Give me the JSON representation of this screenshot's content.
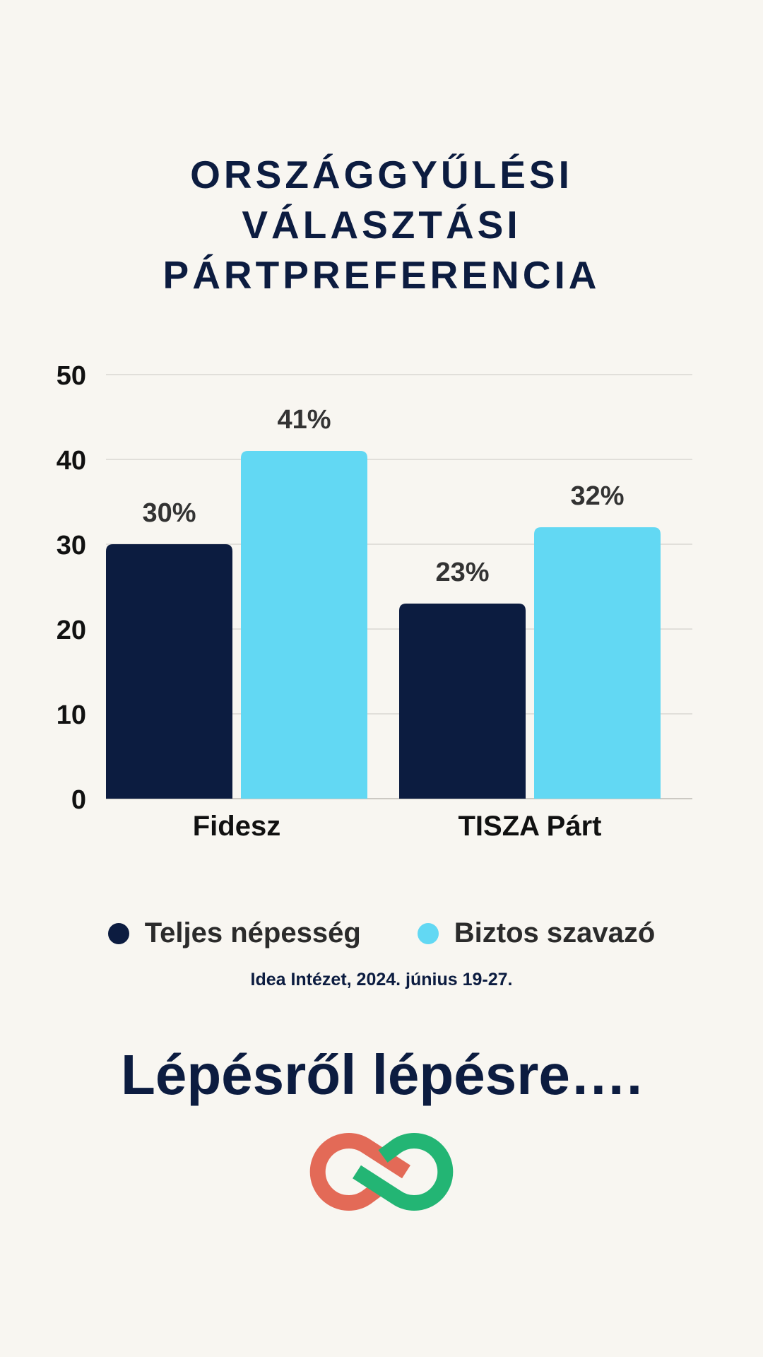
{
  "chart_data": {
    "type": "bar",
    "title": "ORSZÁGGYŰLÉSI VÁLASZTÁSI PÁRTPREFERENCIA",
    "title_lines": [
      "ORSZÁGGYŰLÉSI",
      "VÁLASZTÁSI",
      "PÁRTPREFERENCIA"
    ],
    "categories": [
      "Fidesz",
      "TISZA Párt"
    ],
    "series": [
      {
        "name": "Teljes népesség",
        "values": [
          30,
          23
        ],
        "labels": [
          "30%",
          "23%"
        ],
        "color": "#0c1c40"
      },
      {
        "name": "Biztos szavazó",
        "values": [
          41,
          32
        ],
        "labels": [
          "41%",
          "32%"
        ],
        "color": "#62d8f3"
      }
    ],
    "ylim": [
      0,
      50
    ],
    "yticks": [
      0,
      10,
      20,
      30,
      40,
      50
    ],
    "grid": true,
    "legend": "bottom",
    "xlabel": "",
    "ylabel": ""
  },
  "source": "Idea Intézet, 2024. június 19-27.",
  "slogan": "Lépésről lépésre….",
  "colors": {
    "background": "#f8f6f1",
    "navy": "#0c1c40",
    "cyan": "#62d8f3",
    "logo_red": "#e36a57",
    "logo_green": "#23b574"
  }
}
